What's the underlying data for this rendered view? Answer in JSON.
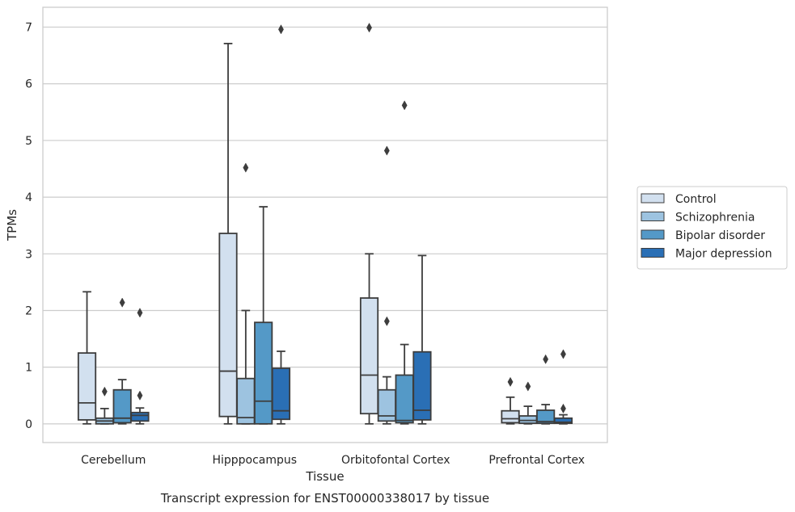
{
  "chart_data": {
    "type": "box",
    "title": "",
    "caption": "Transcript expression for ENST00000338017 by tissue",
    "xlabel": "Tissue",
    "ylabel": "TPMs",
    "ylim": [
      -0.33,
      7.35
    ],
    "yticks": [
      0,
      1,
      2,
      3,
      4,
      5,
      6,
      7
    ],
    "grid": "horizontal",
    "legend_position": "right",
    "categories": [
      "Cerebellum",
      "Hipppocampus",
      "Orbitofontal Cortex",
      "Prefrontal Cortex"
    ],
    "series": [
      {
        "name": "Control",
        "color": "#d2e0ef",
        "boxes": [
          {
            "whislo": 0.0,
            "q1": 0.07,
            "med": 0.37,
            "q3": 1.25,
            "whishi": 2.33,
            "fliers": []
          },
          {
            "whislo": 0.0,
            "q1": 0.13,
            "med": 0.93,
            "q3": 3.36,
            "whishi": 6.71,
            "fliers": []
          },
          {
            "whislo": 0.0,
            "q1": 0.18,
            "med": 0.86,
            "q3": 2.22,
            "whishi": 3.0,
            "fliers": [
              6.99
            ]
          },
          {
            "whislo": 0.0,
            "q1": 0.02,
            "med": 0.09,
            "q3": 0.23,
            "whishi": 0.47,
            "fliers": [
              0.74
            ]
          }
        ]
      },
      {
        "name": "Schizophrenia",
        "color": "#9dc3e0",
        "boxes": [
          {
            "whislo": 0.0,
            "q1": 0.0,
            "med": 0.05,
            "q3": 0.1,
            "whishi": 0.27,
            "fliers": [
              0.57
            ]
          },
          {
            "whislo": 0.0,
            "q1": 0.0,
            "med": 0.11,
            "q3": 0.8,
            "whishi": 2.0,
            "fliers": [
              4.52
            ]
          },
          {
            "whislo": 0.0,
            "q1": 0.05,
            "med": 0.14,
            "q3": 0.6,
            "whishi": 0.83,
            "fliers": [
              4.82,
              1.81
            ]
          },
          {
            "whislo": 0.0,
            "q1": 0.01,
            "med": 0.06,
            "q3": 0.14,
            "whishi": 0.31,
            "fliers": [
              0.66
            ]
          }
        ]
      },
      {
        "name": "Bipolar disorder",
        "color": "#5499c7",
        "boxes": [
          {
            "whislo": 0.0,
            "q1": 0.02,
            "med": 0.1,
            "q3": 0.6,
            "whishi": 0.78,
            "fliers": [
              2.14
            ]
          },
          {
            "whislo": 0.0,
            "q1": 0.0,
            "med": 0.4,
            "q3": 1.79,
            "whishi": 3.83,
            "fliers": []
          },
          {
            "whislo": 0.0,
            "q1": 0.02,
            "med": 0.06,
            "q3": 0.86,
            "whishi": 1.4,
            "fliers": [
              5.62
            ]
          },
          {
            "whislo": 0.0,
            "q1": 0.01,
            "med": 0.04,
            "q3": 0.24,
            "whishi": 0.34,
            "fliers": [
              1.14
            ]
          }
        ]
      },
      {
        "name": "Major depression",
        "color": "#2a6fb5",
        "boxes": [
          {
            "whislo": 0.0,
            "q1": 0.05,
            "med": 0.15,
            "q3": 0.2,
            "whishi": 0.28,
            "fliers": [
              1.96,
              0.5
            ]
          },
          {
            "whislo": 0.0,
            "q1": 0.08,
            "med": 0.23,
            "q3": 0.98,
            "whishi": 1.28,
            "fliers": [
              6.96
            ]
          },
          {
            "whislo": 0.0,
            "q1": 0.07,
            "med": 0.24,
            "q3": 1.27,
            "whishi": 2.97,
            "fliers": []
          },
          {
            "whislo": 0.0,
            "q1": 0.01,
            "med": 0.03,
            "q3": 0.1,
            "whishi": 0.16,
            "fliers": [
              1.23,
              0.27
            ]
          }
        ]
      }
    ]
  }
}
